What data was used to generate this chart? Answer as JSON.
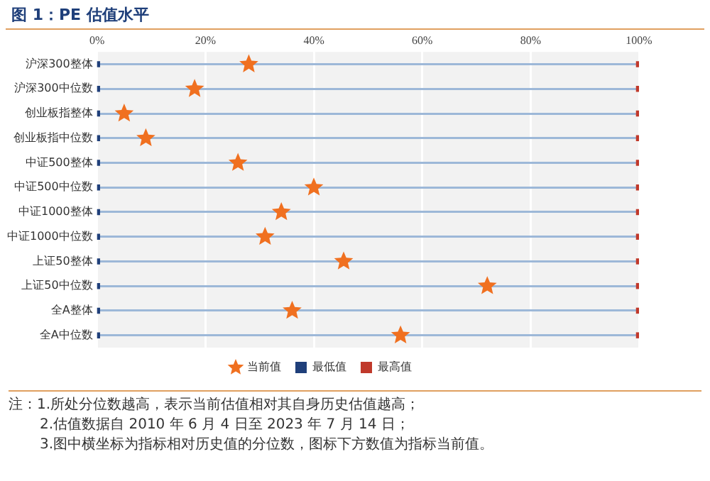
{
  "chart_data": {
    "type": "scatter",
    "orientation": "horizontal",
    "title": "图 1：PE 估值水平",
    "categories": [
      "沪深300整体",
      "沪深300中位数",
      "创业板指整体",
      "创业板指中位数",
      "中证500整体",
      "中证500中位数",
      "中证1000整体",
      "中证1000中位数",
      "上证50整体",
      "上证50中位数",
      "全A整体",
      "全A中位数"
    ],
    "series": [
      {
        "name": "当前值",
        "color": "#f07020",
        "marker": "star",
        "values": [
          28,
          18,
          5,
          9,
          26,
          40,
          34,
          31,
          45.5,
          72,
          36,
          56
        ]
      },
      {
        "name": "最低值",
        "color": "#1f3f7a",
        "marker": "square",
        "values": [
          0,
          0,
          0,
          0,
          0,
          0,
          0,
          0,
          0,
          0,
          0,
          0
        ]
      },
      {
        "name": "最高值",
        "color": "#c0392b",
        "marker": "square",
        "values": [
          100,
          100,
          100,
          100,
          100,
          100,
          100,
          100,
          100,
          100,
          100,
          100
        ]
      }
    ],
    "xlim": [
      0,
      100
    ],
    "xticks": [
      {
        "value": 0,
        "label": "0%"
      },
      {
        "value": 20,
        "label": "20%"
      },
      {
        "value": 40,
        "label": "40%"
      },
      {
        "value": 60,
        "label": "60%"
      },
      {
        "value": 80,
        "label": "80%"
      },
      {
        "value": 100,
        "label": "100%"
      }
    ],
    "grid": true,
    "legend": "bottom",
    "annotations": [
      "注：1.所处分位数越高，表示当前估值相对其自身历史估值越高；",
      "2.估值数据自 2010 年 6 月 4 日至 2023 年 7 月 14 日；",
      "3.图中横坐标为指标相对历史值的分位数，图标下方数值为指标当前值。"
    ]
  }
}
